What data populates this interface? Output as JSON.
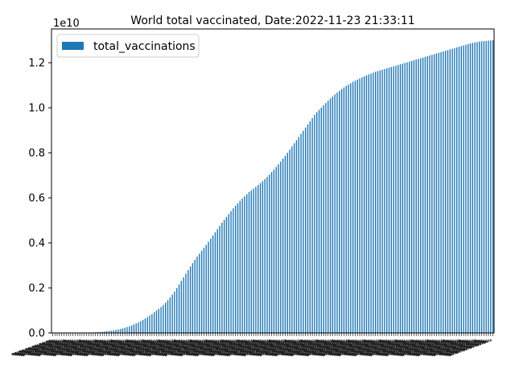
{
  "chart_data": {
    "type": "bar",
    "title": "World total vaccinated, Date:2022-11-23 21:33:11",
    "xlabel": "",
    "ylabel": "",
    "offset_text": "1e10",
    "legend": {
      "label": "total_vaccinations",
      "placement": "top-left"
    },
    "bar_color": "#1f77b4",
    "ylim": [
      0,
      13500000000
    ],
    "yticks": [
      0,
      2000000000,
      4000000000,
      6000000000,
      8000000000,
      10000000000,
      12000000000
    ],
    "yticklabels": [
      "0.0",
      "0.2",
      "0.4",
      "0.6",
      "0.8",
      "1.0",
      "1.2"
    ],
    "grid": false,
    "x_tick_labels_legible": false,
    "series": [
      {
        "values": [
          0,
          0,
          0,
          0,
          0,
          0,
          0,
          0,
          0,
          0,
          1000000,
          2000000,
          3000000,
          5000000,
          7000000,
          10000000,
          13000000,
          17000000,
          22000000,
          28000000,
          35000000,
          43000000,
          52000000,
          62000000,
          73000000,
          86000000,
          100000000,
          116000000,
          134000000,
          154000000,
          177000000,
          202000000,
          230000000,
          262000000,
          297000000,
          335000000,
          377000000,
          422000000,
          470000000,
          522000000,
          578000000,
          637000000,
          700000000,
          768000000,
          841000000,
          917000000,
          998000000,
          1070000000,
          1150000000,
          1240000000,
          1340000000,
          1450000000,
          1570000000,
          1700000000,
          1840000000,
          1990000000,
          2150000000,
          2310000000,
          2470000000,
          2630000000,
          2790000000,
          2950000000,
          3100000000,
          3250000000,
          3390000000,
          3520000000,
          3650000000,
          3780000000,
          3910000000,
          4050000000,
          4190000000,
          4330000000,
          4470000000,
          4610000000,
          4750000000,
          4890000000,
          5020000000,
          5150000000,
          5280000000,
          5410000000,
          5530000000,
          5650000000,
          5760000000,
          5870000000,
          5970000000,
          6070000000,
          6160000000,
          6250000000,
          6330000000,
          6410000000,
          6490000000,
          6570000000,
          6650000000,
          6740000000,
          6830000000,
          6930000000,
          7030000000,
          7140000000,
          7250000000,
          7370000000,
          7490000000,
          7610000000,
          7740000000,
          7870000000,
          8000000000,
          8140000000,
          8280000000,
          8420000000,
          8560000000,
          8700000000,
          8840000000,
          8980000000,
          9120000000,
          9260000000,
          9400000000,
          9540000000,
          9680000000,
          9800000000,
          9910000000,
          10010000000,
          10110000000,
          10210000000,
          10310000000,
          10410000000,
          10500000000,
          10590000000,
          10670000000,
          10750000000,
          10830000000,
          10900000000,
          10970000000,
          11030000000,
          11090000000,
          11150000000,
          11200000000,
          11250000000,
          11300000000,
          11350000000,
          11400000000,
          11440000000,
          11480000000,
          11520000000,
          11560000000,
          11600000000,
          11630000000,
          11660000000,
          11690000000,
          11720000000,
          11750000000,
          11780000000,
          11810000000,
          11840000000,
          11870000000,
          11900000000,
          11930000000,
          11960000000,
          11990000000,
          12020000000,
          12050000000,
          12080000000,
          12110000000,
          12140000000,
          12170000000,
          12200000000,
          12230000000,
          12260000000,
          12290000000,
          12320000000,
          12350000000,
          12380000000,
          12410000000,
          12440000000,
          12470000000,
          12500000000,
          12530000000,
          12560000000,
          12590000000,
          12620000000,
          12650000000,
          12680000000,
          12710000000,
          12740000000,
          12770000000,
          12800000000,
          12830000000,
          12860000000,
          12880000000,
          12900000000,
          12920000000,
          12940000000,
          12950000000,
          12960000000,
          12970000000,
          12980000000,
          12990000000,
          13000000000
        ]
      }
    ]
  }
}
